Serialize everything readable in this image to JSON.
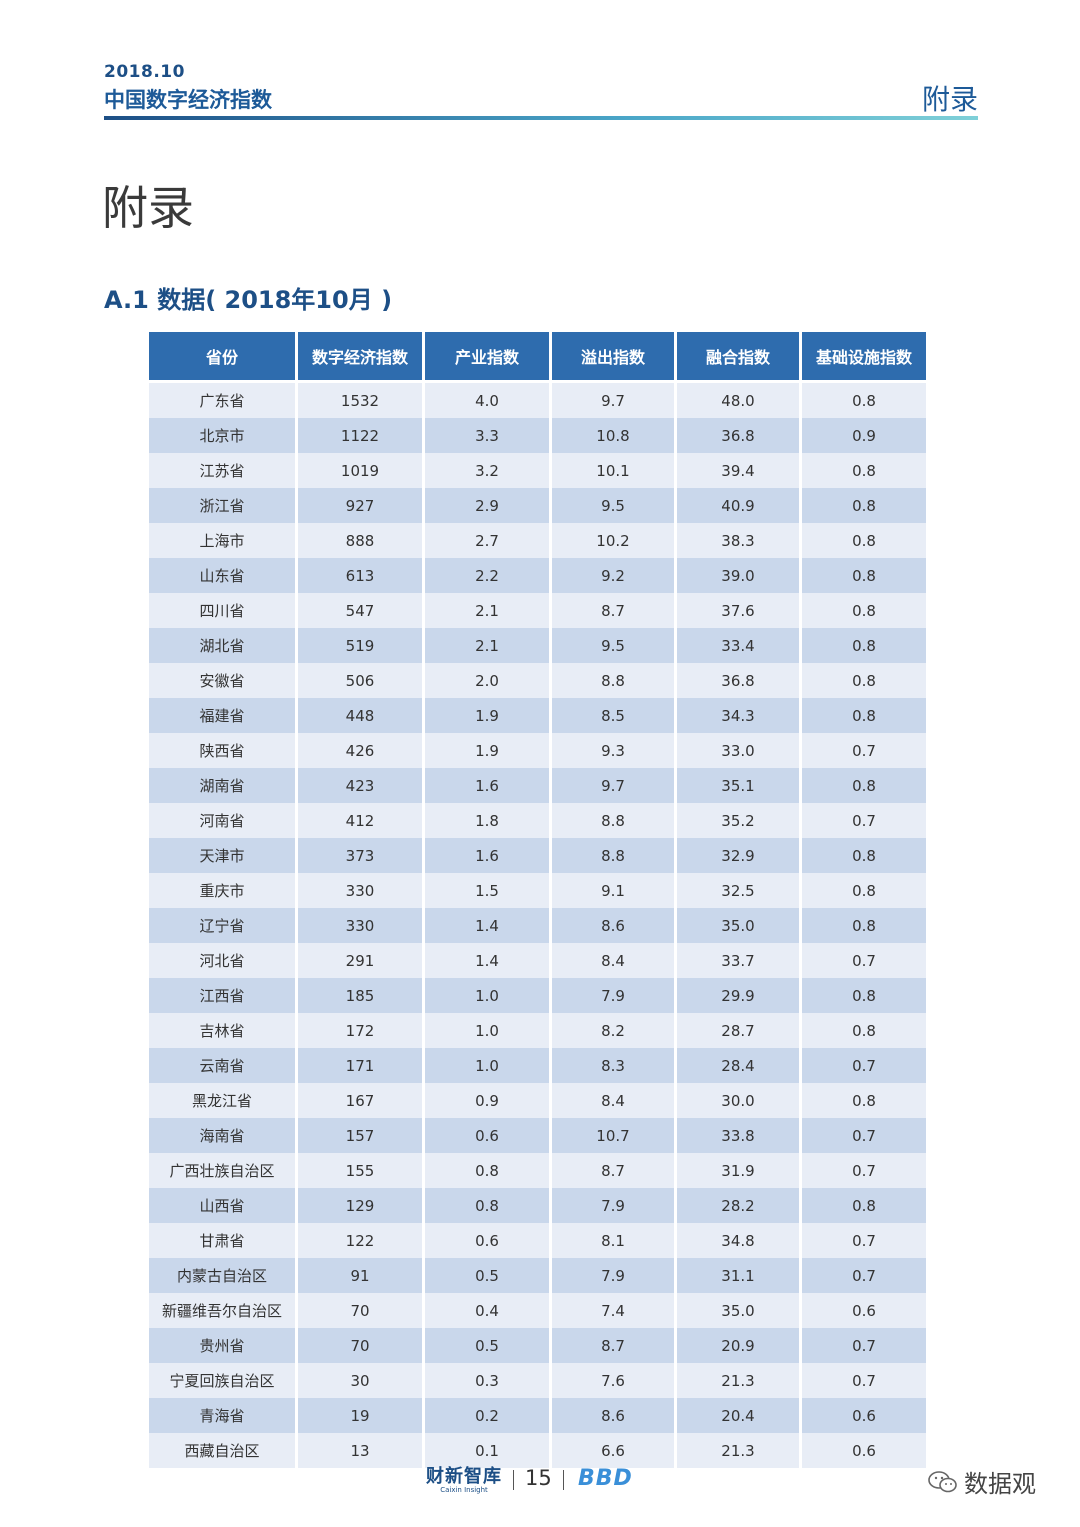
{
  "header": {
    "date": "2018.10",
    "title": "中国数字经济指数",
    "section": "附录"
  },
  "page_title": "附录",
  "section_title": "A.1 数据( 2018年10月 )",
  "table": {
    "columns": [
      "省份",
      "数字经济指数",
      "产业指数",
      "溢出指数",
      "融合指数",
      "基础设施指数"
    ],
    "rows": [
      [
        "广东省",
        "1532",
        "4.0",
        "9.7",
        "48.0",
        "0.8"
      ],
      [
        "北京市",
        "1122",
        "3.3",
        "10.8",
        "36.8",
        "0.9"
      ],
      [
        "江苏省",
        "1019",
        "3.2",
        "10.1",
        "39.4",
        "0.8"
      ],
      [
        "浙江省",
        "927",
        "2.9",
        "9.5",
        "40.9",
        "0.8"
      ],
      [
        "上海市",
        "888",
        "2.7",
        "10.2",
        "38.3",
        "0.8"
      ],
      [
        "山东省",
        "613",
        "2.2",
        "9.2",
        "39.0",
        "0.8"
      ],
      [
        "四川省",
        "547",
        "2.1",
        "8.7",
        "37.6",
        "0.8"
      ],
      [
        "湖北省",
        "519",
        "2.1",
        "9.5",
        "33.4",
        "0.8"
      ],
      [
        "安徽省",
        "506",
        "2.0",
        "8.8",
        "36.8",
        "0.8"
      ],
      [
        "福建省",
        "448",
        "1.9",
        "8.5",
        "34.3",
        "0.8"
      ],
      [
        "陕西省",
        "426",
        "1.9",
        "9.3",
        "33.0",
        "0.7"
      ],
      [
        "湖南省",
        "423",
        "1.6",
        "9.7",
        "35.1",
        "0.8"
      ],
      [
        "河南省",
        "412",
        "1.8",
        "8.8",
        "35.2",
        "0.7"
      ],
      [
        "天津市",
        "373",
        "1.6",
        "8.8",
        "32.9",
        "0.8"
      ],
      [
        "重庆市",
        "330",
        "1.5",
        "9.1",
        "32.5",
        "0.8"
      ],
      [
        "辽宁省",
        "330",
        "1.4",
        "8.6",
        "35.0",
        "0.8"
      ],
      [
        "河北省",
        "291",
        "1.4",
        "8.4",
        "33.7",
        "0.7"
      ],
      [
        "江西省",
        "185",
        "1.0",
        "7.9",
        "29.9",
        "0.8"
      ],
      [
        "吉林省",
        "172",
        "1.0",
        "8.2",
        "28.7",
        "0.8"
      ],
      [
        "云南省",
        "171",
        "1.0",
        "8.3",
        "28.4",
        "0.7"
      ],
      [
        "黑龙江省",
        "167",
        "0.9",
        "8.4",
        "30.0",
        "0.8"
      ],
      [
        "海南省",
        "157",
        "0.6",
        "10.7",
        "33.8",
        "0.7"
      ],
      [
        "广西壮族自治区",
        "155",
        "0.8",
        "8.7",
        "31.9",
        "0.7"
      ],
      [
        "山西省",
        "129",
        "0.8",
        "7.9",
        "28.2",
        "0.8"
      ],
      [
        "甘肃省",
        "122",
        "0.6",
        "8.1",
        "34.8",
        "0.7"
      ],
      [
        "内蒙古自治区",
        "91",
        "0.5",
        "7.9",
        "31.1",
        "0.7"
      ],
      [
        "新疆维吾尔自治区",
        "70",
        "0.4",
        "7.4",
        "35.0",
        "0.6"
      ],
      [
        "贵州省",
        "70",
        "0.5",
        "8.7",
        "20.9",
        "0.7"
      ],
      [
        "宁夏回族自治区",
        "30",
        "0.3",
        "7.6",
        "21.3",
        "0.7"
      ],
      [
        "青海省",
        "19",
        "0.2",
        "8.6",
        "20.4",
        "0.6"
      ],
      [
        "西藏自治区",
        "13",
        "0.1",
        "6.6",
        "21.3",
        "0.6"
      ]
    ]
  },
  "footer": {
    "logo_cn": "财新智库",
    "logo_en": "Caixin Insight",
    "page_number": "15",
    "logo_bbd": "BBD",
    "wechat_text": "数据观",
    "wechat_icon": "wechat-icon"
  }
}
